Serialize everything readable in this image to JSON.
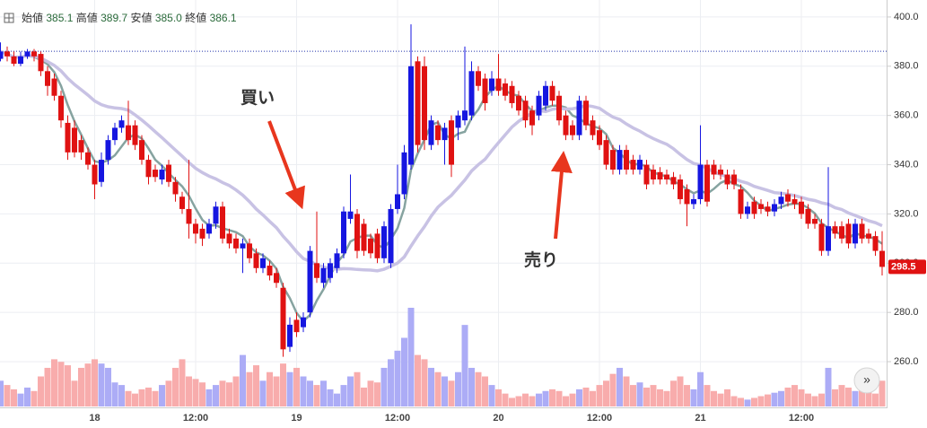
{
  "chart_data": {
    "type": "candlestick",
    "header": {
      "labels": [
        "始値",
        "高値",
        "安値",
        "終値"
      ],
      "values": [
        385.1,
        389.7,
        {
          "value": 385,
          "label": "385.0"
        },
        386.1
      ]
    },
    "categories": [
      null,
      null,
      null,
      null,
      null,
      null,
      null,
      null,
      null,
      null,
      null,
      null,
      null,
      null,
      "18",
      null,
      null,
      null,
      null,
      null,
      null,
      null,
      null,
      null,
      null,
      null,
      null,
      null,
      null,
      "12:00",
      null,
      null,
      null,
      null,
      null,
      null,
      null,
      null,
      null,
      null,
      null,
      null,
      null,
      null,
      "19",
      null,
      null,
      null,
      null,
      null,
      null,
      null,
      null,
      null,
      null,
      null,
      null,
      null,
      null,
      "12:00",
      null,
      null,
      null,
      null,
      null,
      null,
      null,
      null,
      null,
      null,
      null,
      null,
      null,
      null,
      "20",
      null,
      null,
      null,
      null,
      null,
      null,
      null,
      null,
      null,
      null,
      null,
      null,
      null,
      null,
      "12:00",
      null,
      null,
      null,
      null,
      null,
      null,
      null,
      null,
      null,
      null,
      null,
      null,
      null,
      null,
      "21",
      null,
      null,
      null,
      null,
      null,
      null,
      null,
      null,
      null,
      null,
      null,
      null,
      null,
      null,
      "12:00",
      null,
      null,
      null,
      null,
      null,
      null,
      null,
      null,
      null,
      null,
      null,
      null
    ],
    "open": [
      383,
      386,
      384,
      381,
      384,
      386,
      385,
      378,
      375,
      368,
      357,
      355,
      350,
      345,
      340,
      333,
      342,
      350,
      355,
      356,
      356,
      350,
      342,
      338,
      334,
      340,
      333,
      327,
      322,
      316,
      314,
      312,
      316,
      323,
      312,
      310,
      306,
      308,
      304,
      298,
      299,
      296,
      290,
      266,
      277,
      274,
      280,
      300,
      292,
      294,
      298,
      304,
      318,
      320,
      316,
      310,
      312,
      302,
      300,
      322,
      328,
      340,
      382,
      380,
      348,
      356,
      350,
      358,
      355,
      358,
      360,
      378,
      375,
      370,
      375,
      373,
      372,
      368,
      366,
      362,
      360,
      364,
      372,
      368,
      360,
      356,
      352,
      366,
      358,
      354,
      350,
      346,
      338,
      346,
      342,
      338,
      340,
      338,
      337,
      336,
      335,
      334,
      330,
      324,
      326,
      340,
      340,
      338,
      336,
      336,
      330,
      320,
      325,
      324,
      323,
      321,
      324,
      328,
      326,
      325,
      322,
      318,
      316,
      305,
      315,
      315,
      316,
      308,
      316,
      312,
      311,
      305
    ],
    "high": [
      389.7,
      388,
      386,
      386,
      387,
      387,
      386,
      380,
      377,
      370,
      360,
      358,
      352,
      347,
      342,
      345,
      352,
      357,
      360,
      366,
      358,
      352,
      344,
      340,
      340,
      342,
      335,
      329,
      342,
      318,
      316,
      318,
      325,
      325,
      314,
      312,
      310,
      310,
      306,
      304,
      301,
      298,
      292,
      278,
      280,
      280,
      307,
      321,
      300,
      302,
      306,
      323,
      336,
      322,
      318,
      312,
      314,
      317,
      324,
      340,
      348,
      397,
      384,
      384,
      360,
      358,
      357,
      360,
      362,
      388,
      382,
      380,
      377,
      378,
      385,
      375,
      374,
      370,
      368,
      364,
      370,
      374,
      374,
      370,
      362,
      358,
      368,
      368,
      360,
      356,
      352,
      348,
      348,
      348,
      344,
      344,
      342,
      340,
      339,
      338,
      337,
      336,
      332,
      328,
      356,
      342,
      342,
      340,
      338,
      338,
      332,
      325,
      327,
      326,
      325,
      326,
      329,
      330,
      328,
      327,
      324,
      320,
      318,
      339,
      317,
      317,
      318,
      318,
      318,
      314,
      313,
      313
    ],
    "low": [
      382,
      382,
      380,
      380,
      383,
      382,
      376,
      368,
      366,
      355,
      342,
      343,
      342,
      338,
      326,
      331,
      340,
      348,
      353,
      348,
      346,
      340,
      332,
      333,
      332,
      331,
      325,
      320,
      310,
      308,
      307,
      310,
      314,
      308,
      306,
      304,
      296,
      300,
      296,
      296,
      293,
      290,
      262,
      264,
      270,
      272,
      278,
      292,
      290,
      292,
      296,
      302,
      316,
      302,
      303,
      302,
      300,
      300,
      298,
      320,
      326,
      338,
      345,
      346,
      346,
      348,
      340,
      335,
      350,
      356,
      358,
      370,
      362,
      368,
      368,
      366,
      363,
      360,
      355,
      352,
      358,
      362,
      364,
      356,
      350,
      350,
      350,
      354,
      350,
      346,
      338,
      336,
      336,
      336,
      336,
      336,
      330,
      332,
      332,
      332,
      330,
      324,
      315,
      322,
      324,
      323,
      334,
      334,
      330,
      330,
      318,
      318,
      318,
      320,
      319,
      319,
      322,
      323,
      322,
      318,
      314,
      314,
      303,
      303,
      310,
      308,
      306,
      306,
      308,
      308,
      303,
      295
    ],
    "close": [
      386,
      384,
      381,
      384,
      386,
      384,
      378,
      372,
      368,
      358,
      345,
      345,
      345,
      340,
      332,
      342,
      350,
      355,
      358,
      350,
      348,
      342,
      335,
      335,
      338,
      333,
      328,
      322,
      316,
      312,
      310,
      316,
      323,
      310,
      308,
      306,
      308,
      302,
      298,
      302,
      295,
      292,
      265,
      275,
      272,
      278,
      305,
      294,
      298,
      300,
      304,
      321,
      321,
      305,
      305,
      304,
      302,
      315,
      322,
      328,
      345,
      380,
      348,
      350,
      358,
      350,
      355,
      340,
      360,
      362,
      378,
      372,
      365,
      375,
      370,
      368,
      365,
      362,
      358,
      356,
      368,
      372,
      366,
      358,
      352,
      352,
      366,
      356,
      352,
      348,
      340,
      338,
      346,
      338,
      338,
      342,
      332,
      334,
      334,
      334,
      332,
      326,
      324,
      326,
      340,
      325,
      336,
      336,
      332,
      332,
      320,
      323,
      320,
      322,
      321,
      324,
      327,
      325,
      324,
      320,
      316,
      316,
      305,
      315,
      312,
      310,
      308,
      316,
      310,
      310,
      305,
      298.5
    ],
    "volume": [
      30,
      25,
      20,
      15,
      22,
      18,
      35,
      45,
      55,
      52,
      48,
      30,
      45,
      50,
      55,
      50,
      45,
      28,
      25,
      18,
      15,
      20,
      22,
      18,
      25,
      30,
      45,
      55,
      35,
      32,
      28,
      20,
      25,
      30,
      28,
      35,
      60,
      40,
      48,
      30,
      40,
      35,
      50,
      40,
      45,
      35,
      30,
      25,
      30,
      20,
      15,
      25,
      35,
      40,
      22,
      30,
      28,
      45,
      55,
      65,
      80,
      115,
      60,
      55,
      45,
      40,
      35,
      30,
      40,
      95,
      45,
      40,
      35,
      25,
      20,
      15,
      10,
      12,
      15,
      12,
      15,
      18,
      20,
      18,
      12,
      15,
      20,
      22,
      18,
      25,
      30,
      38,
      45,
      35,
      25,
      28,
      22,
      25,
      20,
      18,
      30,
      35,
      25,
      20,
      40,
      25,
      18,
      15,
      20,
      12,
      10,
      8,
      10,
      12,
      14,
      16,
      18,
      22,
      25,
      20,
      15,
      12,
      15,
      45,
      20,
      25,
      22,
      18,
      20,
      18,
      15,
      30
    ],
    "up_color": "#1616e0",
    "down_color": "#e01212",
    "up_volume_color": "#a3a3f5",
    "down_volume_color": "#f7a3a3",
    "moving_averages": [
      {
        "period": 5,
        "color": "#86a3a0"
      },
      {
        "period": 20,
        "color": "#c8c2e4"
      }
    ],
    "ylim": [
      241.8,
      406.9
    ],
    "yticks": [
      {
        "value": 260,
        "label": "260.0"
      },
      {
        "value": 280,
        "label": "280.0"
      },
      {
        "value": 300,
        "label": "300.0"
      },
      {
        "value": 320,
        "label": "320.0"
      },
      {
        "value": 340,
        "label": "340.0"
      },
      {
        "value": 360,
        "label": "360.0"
      },
      {
        "value": 380,
        "label": "380.0"
      },
      {
        "value": 400,
        "label": "400.0"
      }
    ],
    "grid": true,
    "annotations": [
      "買い",
      "売り"
    ]
  }
}
